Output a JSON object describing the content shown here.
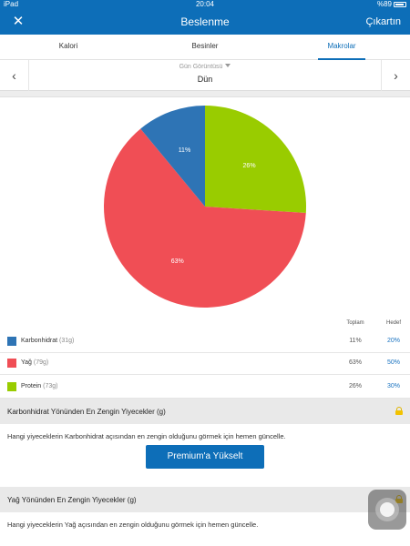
{
  "status_bar": {
    "device": "iPad",
    "time": "20:04",
    "battery": "%89"
  },
  "nav": {
    "title": "Beslenme",
    "action_label": "Çıkartın",
    "close_glyph": "✕"
  },
  "tabs": [
    {
      "label": "Kalori"
    },
    {
      "label": "Besinler"
    },
    {
      "label": "Makrolar"
    }
  ],
  "date_nav": {
    "view_label": "Gün Görüntüsü",
    "date": "Dün",
    "prev_glyph": "‹",
    "next_glyph": "›"
  },
  "chart_data": {
    "type": "pie",
    "slices": [
      {
        "name": "Protein",
        "value": 26,
        "label": "26%",
        "color": "#99cc00"
      },
      {
        "name": "Yağ",
        "value": 63,
        "label": "63%",
        "color": "#f04e55"
      },
      {
        "name": "Karbonhidrat",
        "value": 11,
        "label": "11%",
        "color": "#2e74b5"
      }
    ]
  },
  "table": {
    "header_total": "Toplam",
    "header_goal": "Hedef",
    "rows": [
      {
        "name": "Karbonhidrat",
        "grams": "(31g)",
        "total": "11%",
        "goal": "20%",
        "color": "#2e74b5"
      },
      {
        "name": "Yağ",
        "grams": "(79g)",
        "total": "63%",
        "goal": "50%",
        "color": "#f04e55"
      },
      {
        "name": "Protein",
        "grams": "(73g)",
        "total": "26%",
        "goal": "30%",
        "color": "#99cc00"
      }
    ]
  },
  "sections": [
    {
      "title": "Karbonhidrat Yönünden En Zengin Yiyecekler (g)",
      "description": "Hangi yiyeceklerin Karbonhidrat açısından en zengin olduğunu görmek için hemen güncelle.",
      "button_label": "Premium'a Yükselt"
    },
    {
      "title": "Yağ Yönünden En Zengin Yiyecekler (g)",
      "description": "Hangi yiyeceklerin Yağ açısından en zengin olduğunu görmek için hemen güncelle."
    }
  ]
}
